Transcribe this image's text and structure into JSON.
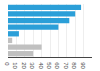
{
  "chart_data": {
    "type": "bar",
    "orientation": "horizontal",
    "categories": [
      null,
      null,
      null,
      null,
      null,
      null,
      null,
      null
    ],
    "values": [
      87,
      80,
      73,
      60,
      13,
      5,
      40,
      30
    ],
    "colors": [
      "#2b9fd8",
      "#2b9fd8",
      "#2b9fd8",
      "#2b9fd8",
      "#2b9fd8",
      "#c0c0c0",
      "#c0c0c0",
      "#c0c0c0"
    ],
    "xlim": [
      0,
      100
    ],
    "xticks": [
      0,
      10,
      20,
      30,
      40,
      50,
      60,
      70,
      80,
      90
    ],
    "grid": true,
    "tick_labels": "x"
  }
}
